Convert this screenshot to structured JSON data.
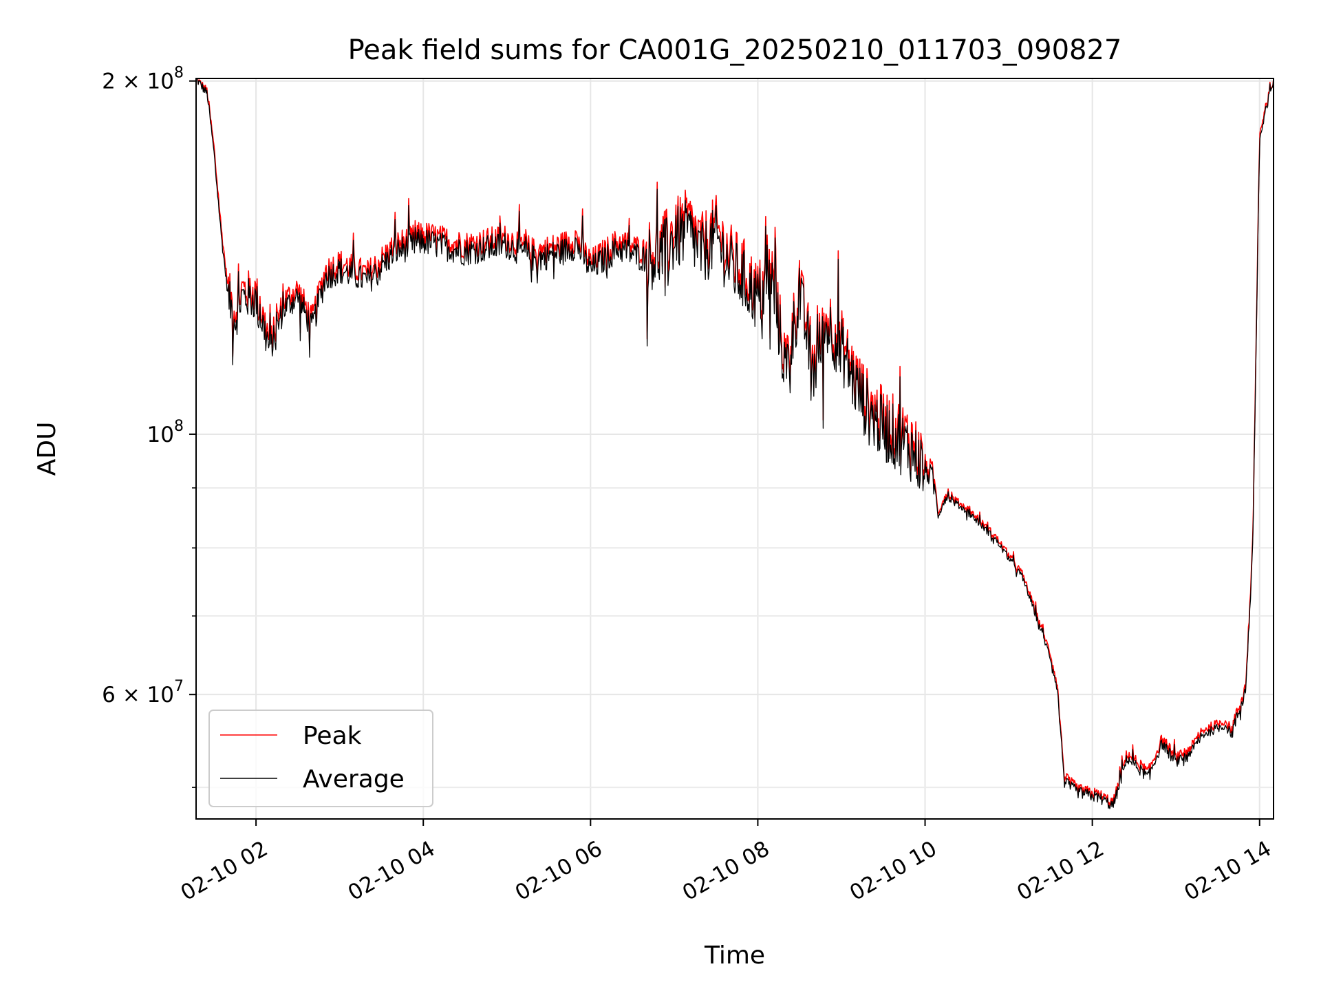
{
  "chart_data": {
    "type": "line",
    "title": "Peak field sums for CA001G_20250210_011703_090827",
    "xlabel": "Time",
    "ylabel": "ADU",
    "yscale": "log",
    "ylim": [
      47000000,
      201000000
    ],
    "xlim": [
      "2025-02-10 01:17",
      "2025-02-10 14:10"
    ],
    "grid": true,
    "legend_position": "bottom-left",
    "x_ticks": [
      "02-10 02",
      "02-10 04",
      "02-10 06",
      "02-10 08",
      "02-10 10",
      "02-10 12",
      "02-10 14"
    ],
    "x_tick_times": [
      "2025-02-10 02:00",
      "2025-02-10 04:00",
      "2025-02-10 06:00",
      "2025-02-10 08:00",
      "2025-02-10 10:00",
      "2025-02-10 12:00",
      "2025-02-10 14:00"
    ],
    "y_ticks": [
      {
        "value": 200000000,
        "base": "2 × 10",
        "exp": "8"
      },
      {
        "value": 100000000,
        "base": "10",
        "exp": "8"
      },
      {
        "value": 60000000,
        "base": "6 × 10",
        "exp": "7"
      }
    ],
    "y_minor_ticks": [
      50000000,
      70000000,
      80000000,
      90000000
    ],
    "x": [
      "2025-02-10 01:17",
      "2025-02-10 01:25",
      "2025-02-10 01:30",
      "2025-02-10 01:35",
      "2025-02-10 01:40",
      "2025-02-10 01:45",
      "2025-02-10 01:50",
      "2025-02-10 02:00",
      "2025-02-10 02:10",
      "2025-02-10 02:20",
      "2025-02-10 02:30",
      "2025-02-10 02:40",
      "2025-02-10 02:50",
      "2025-02-10 03:00",
      "2025-02-10 03:20",
      "2025-02-10 03:40",
      "2025-02-10 04:00",
      "2025-02-10 04:30",
      "2025-02-10 05:00",
      "2025-02-10 05:20",
      "2025-02-10 05:40",
      "2025-02-10 05:50",
      "2025-02-10 06:00",
      "2025-02-10 06:20",
      "2025-02-10 06:40",
      "2025-02-10 06:50",
      "2025-02-10 07:00",
      "2025-02-10 07:10",
      "2025-02-10 07:20",
      "2025-02-10 07:30",
      "2025-02-10 07:40",
      "2025-02-10 07:50",
      "2025-02-10 08:00",
      "2025-02-10 08:10",
      "2025-02-10 08:20",
      "2025-02-10 08:30",
      "2025-02-10 08:40",
      "2025-02-10 08:50",
      "2025-02-10 09:00",
      "2025-02-10 09:10",
      "2025-02-10 09:20",
      "2025-02-10 09:30",
      "2025-02-10 09:40",
      "2025-02-10 09:50",
      "2025-02-10 10:00",
      "2025-02-10 10:05",
      "2025-02-10 10:10",
      "2025-02-10 10:15",
      "2025-02-10 10:30",
      "2025-02-10 10:50",
      "2025-02-10 11:10",
      "2025-02-10 11:30",
      "2025-02-10 11:35",
      "2025-02-10 11:40",
      "2025-02-10 11:50",
      "2025-02-10 12:05",
      "2025-02-10 12:15",
      "2025-02-10 12:25",
      "2025-02-10 12:40",
      "2025-02-10 12:50",
      "2025-02-10 13:00",
      "2025-02-10 13:10",
      "2025-02-10 13:20",
      "2025-02-10 13:35",
      "2025-02-10 13:40",
      "2025-02-10 13:50",
      "2025-02-10 13:55",
      "2025-02-10 14:00",
      "2025-02-10 14:10"
    ],
    "series": [
      {
        "name": "Peak",
        "color": "#ff0000",
        "values": [
          201000000,
          196000000,
          175000000,
          150000000,
          133000000,
          127000000,
          133000000,
          132000000,
          120000000,
          130000000,
          133000000,
          125000000,
          138000000,
          140000000,
          137000000,
          145000000,
          148000000,
          145000000,
          147000000,
          143000000,
          145000000,
          147000000,
          140000000,
          146000000,
          143000000,
          144000000,
          149000000,
          152000000,
          145000000,
          150000000,
          142000000,
          138000000,
          132000000,
          138000000,
          115000000,
          133000000,
          115000000,
          126000000,
          120000000,
          112000000,
          106000000,
          103000000,
          101000000,
          99000000,
          94000000,
          93000000,
          86000000,
          89000000,
          86500000,
          82000000,
          76000000,
          65000000,
          61000000,
          51000000,
          49800000,
          49300000,
          48500000,
          53500000,
          51500000,
          55000000,
          53000000,
          54000000,
          56000000,
          57000000,
          56000000,
          61000000,
          80000000,
          180000000,
          201000000
        ]
      },
      {
        "name": "Average",
        "color": "#000000",
        "values": [
          201000000,
          195000000,
          173000000,
          148000000,
          131000000,
          125000000,
          131000000,
          130000000,
          118000000,
          128000000,
          131000000,
          123000000,
          136000000,
          138000000,
          135000000,
          143000000,
          146000000,
          143000000,
          145000000,
          141000000,
          143000000,
          145000000,
          138000000,
          144000000,
          141000000,
          142000000,
          146000000,
          149000000,
          142000000,
          147000000,
          139000000,
          135000000,
          130000000,
          135000000,
          113000000,
          131000000,
          113000000,
          124000000,
          118000000,
          110000000,
          104000000,
          101000000,
          99000000,
          97000000,
          93000000,
          92000000,
          85500000,
          88500000,
          86000000,
          81500000,
          75500000,
          64500000,
          60500000,
          50500000,
          49500000,
          49000000,
          48200000,
          53000000,
          51000000,
          54500000,
          52500000,
          53500000,
          55500000,
          56500000,
          55500000,
          60500000,
          79000000,
          178000000,
          201000000
        ]
      }
    ]
  }
}
